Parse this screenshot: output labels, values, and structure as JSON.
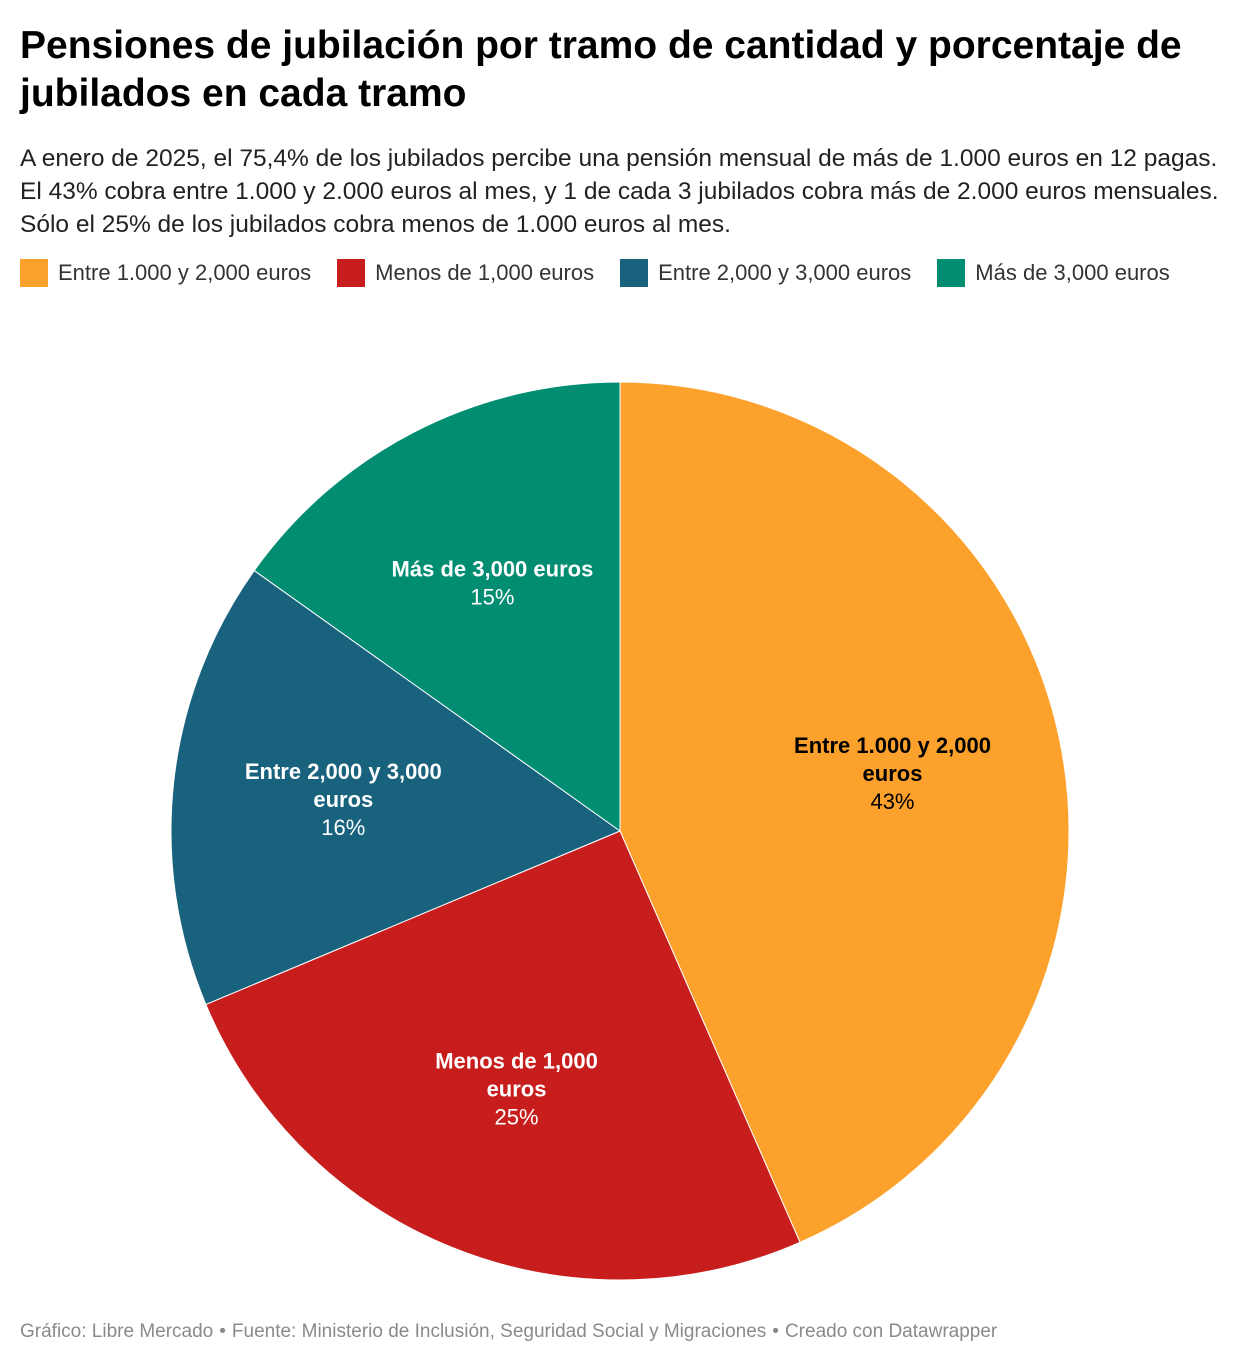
{
  "title": "Pensiones de jubilación por tramo de cantidad y porcentaje de jubilados en cada tramo",
  "subtitle": "A enero de 2025, el 75,4% de los jubilados percibe una pensión mensual de más de 1.000 euros en 12 pagas. El 43% cobra entre 1.000 y 2.000 euros al mes, y 1 de cada 3 jubilados cobra más de 2.000 euros mensuales. Sólo el 25% de los jubilados cobra menos de 1.000 euros al mes.",
  "legend": [
    {
      "label": "Entre 1.000 y 2,000 euros",
      "color": "#fca12b"
    },
    {
      "label": "Menos de 1,000 euros",
      "color": "#c71e1d"
    },
    {
      "label": "Entre 2,000 y 3,000 euros",
      "color": "#18627e"
    },
    {
      "label": "Más de 3,000 euros",
      "color": "#008d72"
    }
  ],
  "chart_data": {
    "type": "pie",
    "slices": [
      {
        "label": "Entre 1.000 y 2,000 euros",
        "value": 43,
        "value_label": "43%",
        "color": "#fca12b",
        "text_color": "#000000"
      },
      {
        "label": "Menos de 1,000 euros",
        "value": 25,
        "value_label": "25%",
        "color": "#c71e1d",
        "text_color": "#ffffff"
      },
      {
        "label": "Entre 2,000 y 3,000 euros",
        "value": 16,
        "value_label": "16%",
        "color": "#18627e",
        "text_color": "#ffffff"
      },
      {
        "label": "Más de 3,000 euros",
        "value": 15,
        "value_label": "15%",
        "color": "#008d72",
        "text_color": "#ffffff"
      }
    ],
    "start": "top",
    "direction": "clockwise",
    "legend_position": "top-left"
  },
  "footer": {
    "chart_credit": "Gráfico: Libre Mercado",
    "source": "Fuente: Ministerio de Inclusión, Seguridad Social y Migraciones",
    "tool": "Creado con Datawrapper"
  }
}
